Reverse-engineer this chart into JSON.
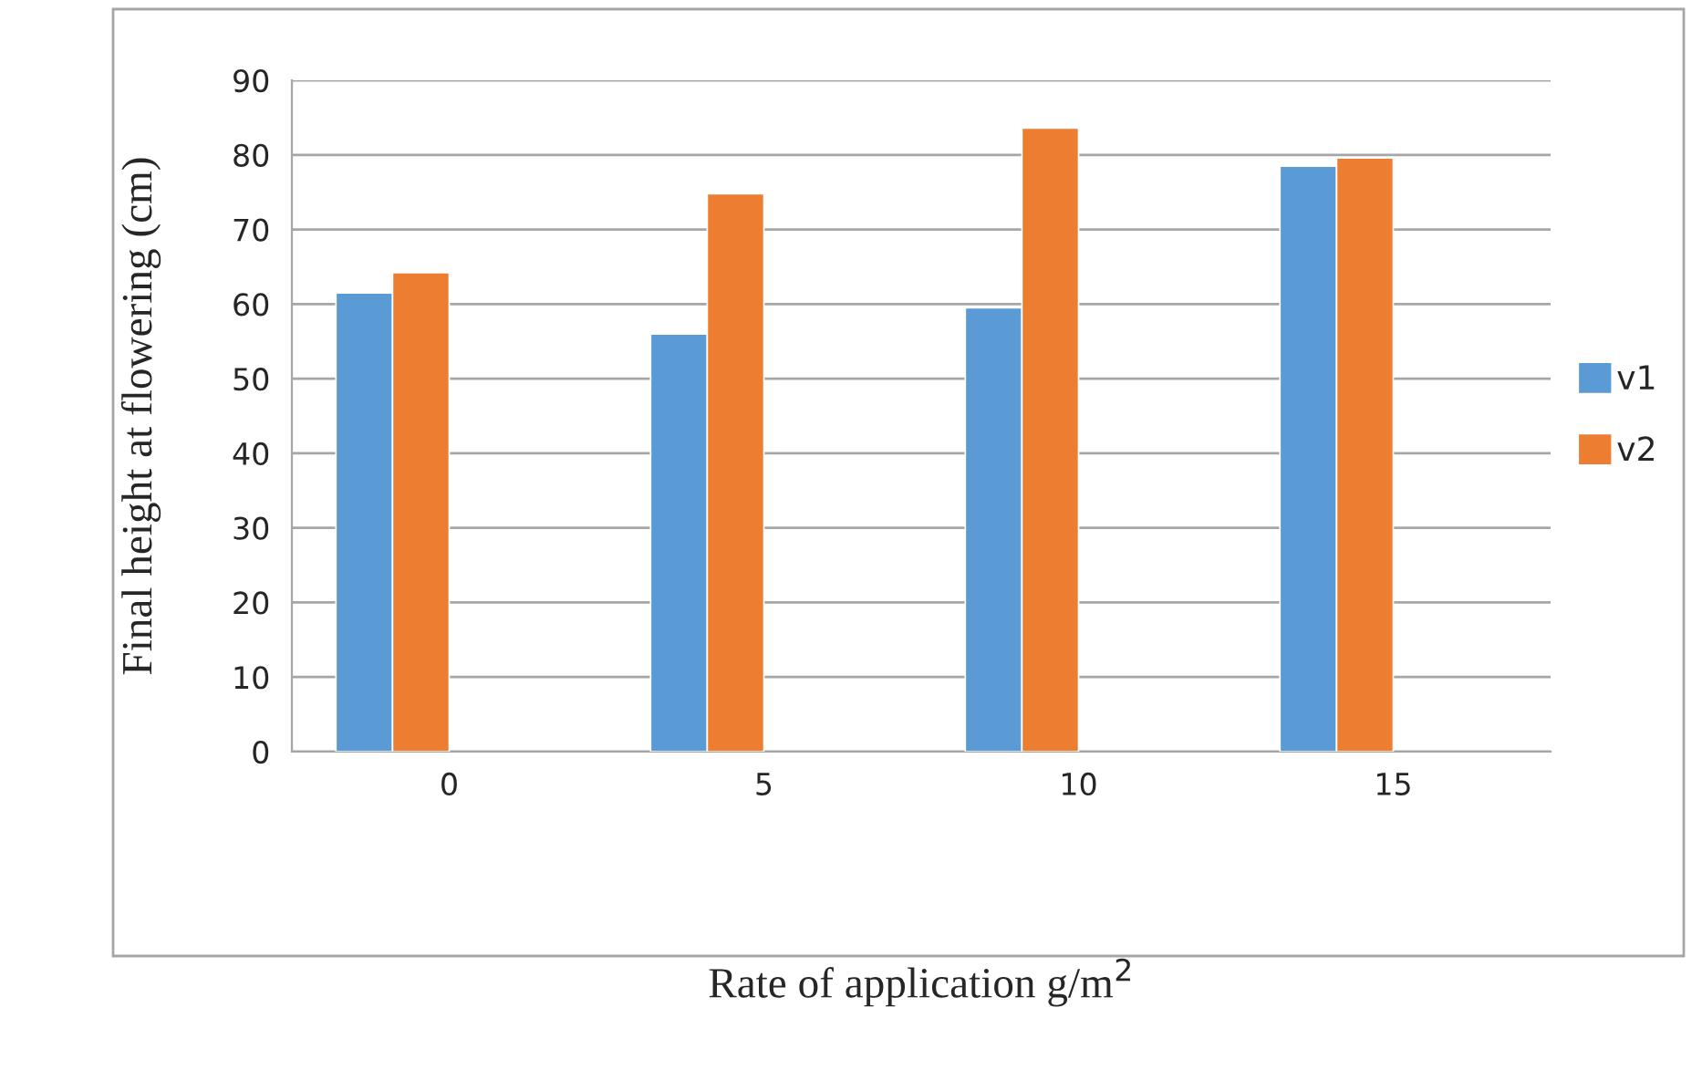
{
  "chart_data": {
    "type": "bar",
    "xlabel": "Rate of application g/m$^{2}$",
    "ylabel": "Final height at flowering (cm)",
    "categories": [
      "0",
      "5",
      "10",
      "15"
    ],
    "series": [
      {
        "name": "v1",
        "color": "#5b9bd5",
        "values": [
          61.5,
          56.0,
          59.5,
          78.5
        ]
      },
      {
        "name": "v2",
        "color": "#ed7d31",
        "values": [
          64.2,
          74.8,
          83.6,
          79.6
        ]
      }
    ],
    "ylim": [
      0,
      90
    ],
    "yticks": [
      0,
      10,
      20,
      30,
      40,
      50,
      60,
      70,
      80,
      90
    ],
    "grid": "y",
    "legend": "right"
  }
}
